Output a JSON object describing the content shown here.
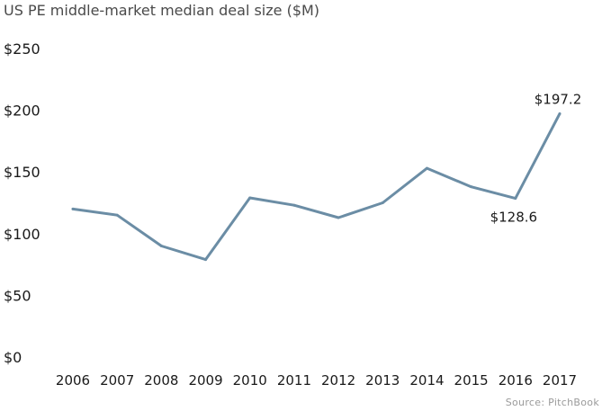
{
  "chart_data": {
    "type": "line",
    "title": "US PE middle-market median deal size ($M)",
    "xlabel": "",
    "ylabel": "",
    "categories": [
      "2006",
      "2007",
      "2008",
      "2009",
      "2010",
      "2011",
      "2012",
      "2013",
      "2014",
      "2015",
      "2016",
      "2017"
    ],
    "series": [
      {
        "name": "Median deal size",
        "values": [
          120,
          115,
          90,
          79,
          129,
          123,
          113,
          125,
          153,
          138,
          128.6,
          197.2
        ]
      }
    ],
    "ylim": [
      0,
      250
    ],
    "yticks": [
      0,
      50,
      100,
      150,
      200,
      250
    ],
    "ytick_labels": [
      "$0",
      "$50",
      "$100",
      "$150",
      "$200",
      "$250"
    ],
    "grid": false,
    "line_color": "#6b8da5",
    "annotations": [
      {
        "category": "2016",
        "text": "$128.6",
        "placement": "below"
      },
      {
        "category": "2017",
        "text": "$197.2",
        "placement": "above"
      }
    ],
    "source": "Source: PitchBook"
  }
}
